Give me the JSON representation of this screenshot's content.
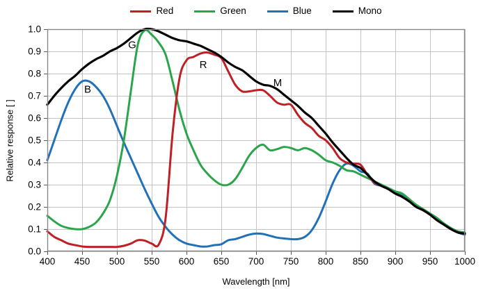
{
  "chart_data": {
    "type": "line",
    "title": "",
    "xlabel": "Wavelength [nm]",
    "ylabel": "Relative response [ ]",
    "xlim": [
      400,
      1000
    ],
    "ylim": [
      0.0,
      1.0
    ],
    "xticks": [
      400,
      450,
      500,
      550,
      600,
      650,
      700,
      750,
      800,
      850,
      900,
      950,
      1000
    ],
    "ytick_values": [
      0.0,
      0.1,
      0.2,
      0.3,
      0.4,
      0.5,
      0.6,
      0.7,
      0.8,
      0.9,
      1.0
    ],
    "ytick_labels": [
      "0.0",
      "0.1",
      "0.2",
      "0.3",
      "0.4",
      "0.5",
      "0.6",
      "0.7",
      "0.8",
      "0.9",
      "1.0"
    ],
    "grid": true,
    "legend_position": "top",
    "x": [
      400,
      410,
      420,
      430,
      440,
      450,
      460,
      470,
      480,
      490,
      500,
      510,
      520,
      530,
      540,
      550,
      560,
      570,
      580,
      590,
      600,
      610,
      620,
      630,
      640,
      650,
      660,
      670,
      680,
      690,
      700,
      710,
      720,
      730,
      740,
      750,
      760,
      770,
      780,
      790,
      800,
      810,
      820,
      830,
      840,
      850,
      860,
      870,
      880,
      890,
      900,
      910,
      920,
      930,
      940,
      950,
      960,
      970,
      980,
      990,
      1000
    ],
    "series": [
      {
        "name": "Red",
        "color": "#bf2026",
        "values": [
          0.09,
          0.065,
          0.05,
          0.035,
          0.028,
          0.022,
          0.02,
          0.02,
          0.02,
          0.02,
          0.02,
          0.025,
          0.035,
          0.05,
          0.048,
          0.035,
          0.03,
          0.15,
          0.53,
          0.78,
          0.86,
          0.875,
          0.89,
          0.895,
          0.885,
          0.87,
          0.81,
          0.75,
          0.72,
          0.72,
          0.725,
          0.725,
          0.7,
          0.67,
          0.66,
          0.66,
          0.615,
          0.578,
          0.555,
          0.52,
          0.5,
          0.465,
          0.42,
          0.4,
          0.395,
          0.39,
          0.345,
          0.31,
          0.295,
          0.28,
          0.26,
          0.245,
          0.225,
          0.2,
          0.185,
          0.165,
          0.14,
          0.12,
          0.1,
          0.085,
          0.08
        ]
      },
      {
        "name": "Green",
        "color": "#2aa54a",
        "values": [
          0.16,
          0.135,
          0.115,
          0.105,
          0.1,
          0.1,
          0.11,
          0.13,
          0.17,
          0.23,
          0.34,
          0.5,
          0.72,
          0.93,
          0.995,
          0.975,
          0.94,
          0.885,
          0.765,
          0.635,
          0.53,
          0.455,
          0.39,
          0.35,
          0.32,
          0.3,
          0.3,
          0.325,
          0.375,
          0.43,
          0.465,
          0.48,
          0.455,
          0.46,
          0.47,
          0.465,
          0.455,
          0.465,
          0.455,
          0.435,
          0.41,
          0.4,
          0.385,
          0.365,
          0.36,
          0.345,
          0.33,
          0.315,
          0.3,
          0.285,
          0.27,
          0.26,
          0.235,
          0.21,
          0.19,
          0.17,
          0.15,
          0.125,
          0.105,
          0.09,
          0.085
        ]
      },
      {
        "name": "Blue",
        "color": "#2171b8",
        "values": [
          0.41,
          0.5,
          0.59,
          0.67,
          0.73,
          0.765,
          0.765,
          0.74,
          0.7,
          0.64,
          0.565,
          0.49,
          0.42,
          0.35,
          0.28,
          0.215,
          0.155,
          0.11,
          0.075,
          0.05,
          0.035,
          0.028,
          0.022,
          0.022,
          0.028,
          0.032,
          0.05,
          0.055,
          0.065,
          0.075,
          0.08,
          0.078,
          0.07,
          0.062,
          0.058,
          0.055,
          0.055,
          0.065,
          0.095,
          0.15,
          0.225,
          0.305,
          0.365,
          0.395,
          0.385,
          0.36,
          0.35,
          0.305,
          0.295,
          0.285,
          0.265,
          0.25,
          0.235,
          0.205,
          0.185,
          0.17,
          0.145,
          0.12,
          0.1,
          0.085,
          0.075
        ]
      },
      {
        "name": "Mono",
        "color": "#000000",
        "values": [
          0.66,
          0.7,
          0.735,
          0.765,
          0.79,
          0.82,
          0.845,
          0.865,
          0.88,
          0.9,
          0.915,
          0.935,
          0.96,
          0.985,
          1.0,
          1.0,
          0.99,
          0.975,
          0.96,
          0.95,
          0.945,
          0.935,
          0.925,
          0.91,
          0.895,
          0.875,
          0.85,
          0.83,
          0.815,
          0.79,
          0.765,
          0.75,
          0.745,
          0.73,
          0.705,
          0.68,
          0.655,
          0.625,
          0.6,
          0.565,
          0.53,
          0.49,
          0.455,
          0.42,
          0.39,
          0.375,
          0.345,
          0.315,
          0.295,
          0.28,
          0.26,
          0.245,
          0.225,
          0.2,
          0.185,
          0.165,
          0.14,
          0.12,
          0.1,
          0.085,
          0.08
        ]
      }
    ],
    "annotations": [
      {
        "text": "B",
        "x": 458,
        "y": 0.73
      },
      {
        "text": "G",
        "x": 522,
        "y": 0.93
      },
      {
        "text": "R",
        "x": 624,
        "y": 0.84
      },
      {
        "text": "M",
        "x": 731,
        "y": 0.76
      }
    ]
  },
  "colors": {
    "grid": "#c4c4c4",
    "axis": "#888888",
    "tick_text": "#000000",
    "background": "#ffffff"
  }
}
